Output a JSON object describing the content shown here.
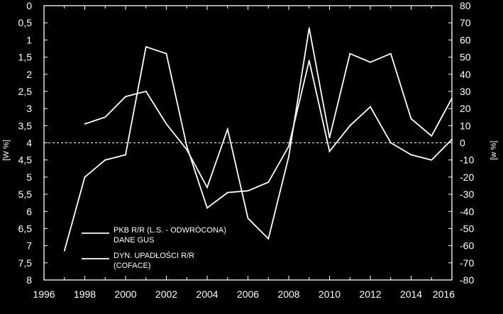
{
  "chart_data": {
    "type": "line",
    "xlim": [
      1996,
      2016
    ],
    "x_ticks": [
      "1996",
      "1998",
      "2000",
      "2002",
      "2004",
      "2006",
      "2008",
      "2010",
      "2012",
      "2014",
      "2016"
    ],
    "y_left": {
      "label": "[W %]",
      "range": [
        0,
        8
      ],
      "inverted": true,
      "ticks": [
        "0",
        "0,5",
        "1",
        "1,5",
        "2",
        "2,5",
        "3",
        "3,5",
        "4",
        "4,5",
        "5",
        "5,5",
        "6",
        "6,5",
        "7",
        "7,5",
        "8"
      ]
    },
    "y_right": {
      "label": "[w %]",
      "range": [
        -80,
        80
      ],
      "ticks": [
        "80",
        "70",
        "60",
        "50",
        "40",
        "30",
        "20",
        "10",
        "0",
        "-10",
        "-20",
        "-30",
        "-40",
        "-50",
        "-60",
        "-70",
        "-80"
      ]
    },
    "reference_line": {
      "y_right": 0,
      "style": "dashed"
    },
    "series": [
      {
        "name": "PKB R/R (L.S. - ODWRÓCONA) DANE GUS",
        "axis": "left",
        "x": [
          1998,
          1999,
          2000,
          2001,
          2002,
          2003,
          2004,
          2005,
          2006,
          2007,
          2008,
          2009,
          2010,
          2011,
          2012,
          2013,
          2014,
          2015,
          2016
        ],
        "values": [
          3.45,
          3.25,
          2.65,
          2.5,
          3.45,
          4.2,
          5.3,
          3.6,
          6.2,
          6.8,
          4.4,
          0.65,
          3.85,
          1.4,
          1.65,
          1.4,
          3.3,
          3.8,
          2.7
        ]
      },
      {
        "name": "DYN. UPADŁOŚCI R/R (COFACE)",
        "axis": "right",
        "x": [
          1997,
          1998,
          1999,
          2000,
          2001,
          2002,
          2003,
          2004,
          2005,
          2006,
          2007,
          2008,
          2009,
          2010,
          2011,
          2012,
          2013,
          2014,
          2015,
          2016
        ],
        "values": [
          -63,
          -20,
          -10,
          -7,
          56,
          52,
          -2,
          -38,
          -29,
          -28,
          -23,
          -2,
          48,
          -5,
          10,
          21,
          0,
          -7,
          -10,
          2
        ]
      }
    ],
    "legend": {
      "placement": "bottom-left",
      "entries": [
        "PKB R/R (L.S. - ODWRÓCONA)",
        "DANE GUS",
        "DYN. UPADŁOŚCI R/R",
        "(COFACE)"
      ]
    },
    "grid": false,
    "colors": {
      "background": "#000000",
      "line": "#ffffff"
    }
  }
}
